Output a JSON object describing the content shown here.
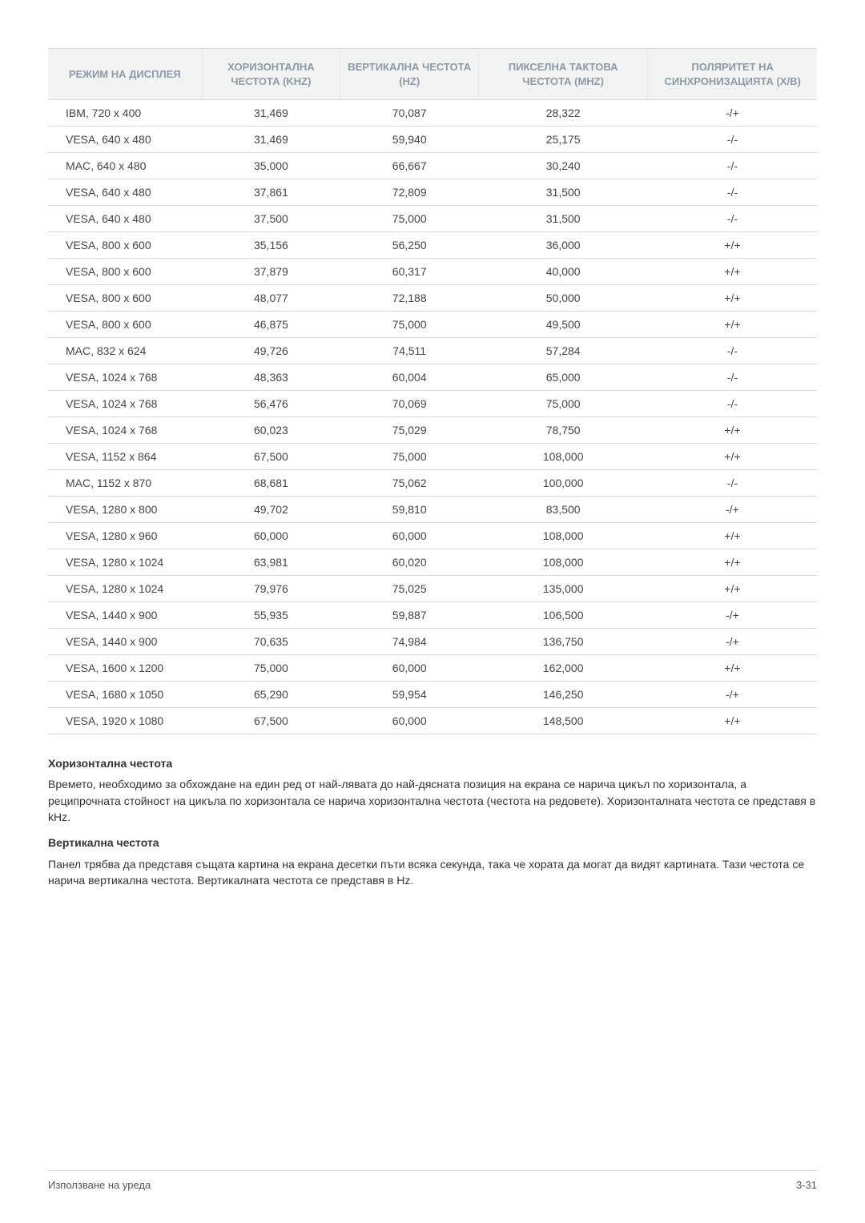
{
  "table": {
    "columns": [
      "РЕЖИМ НА ДИСПЛЕЯ",
      "ХОРИЗОНТАЛНА ЧЕСТОТА (KHZ)",
      "ВЕРТИКАЛНА ЧЕСТОТА (HZ)",
      "ПИКСЕЛНА ТАКТОВА ЧЕСТОТА (MHZ)",
      "ПОЛЯРИТЕТ НА СИНХРОНИЗАЦИЯТА (Х/В)"
    ],
    "col_widths_pct": [
      20,
      18,
      18,
      22,
      22
    ],
    "header_bg": "#f1f2f2",
    "header_fg": "#8d9aa6",
    "border_color": "#d7d9db",
    "rows": [
      [
        "IBM, 720 x 400",
        "31,469",
        "70,087",
        "28,322",
        "-/+"
      ],
      [
        "VESA, 640 x 480",
        "31,469",
        "59,940",
        "25,175",
        "-/-"
      ],
      [
        "MAC, 640 x 480",
        "35,000",
        "66,667",
        "30,240",
        "-/-"
      ],
      [
        "VESA, 640 x 480",
        "37,861",
        "72,809",
        "31,500",
        "-/-"
      ],
      [
        "VESA, 640 x 480",
        "37,500",
        "75,000",
        "31,500",
        "-/-"
      ],
      [
        "VESA, 800 x 600",
        "35,156",
        "56,250",
        "36,000",
        "+/+"
      ],
      [
        "VESA, 800 x 600",
        "37,879",
        "60,317",
        "40,000",
        "+/+"
      ],
      [
        "VESA, 800 x 600",
        "48,077",
        "72,188",
        "50,000",
        "+/+"
      ],
      [
        "VESA, 800 x 600",
        "46,875",
        "75,000",
        "49,500",
        "+/+"
      ],
      [
        "MAC, 832 x 624",
        "49,726",
        "74,511",
        "57,284",
        "-/-"
      ],
      [
        "VESA, 1024 x 768",
        "48,363",
        "60,004",
        "65,000",
        "-/-"
      ],
      [
        "VESA, 1024 x 768",
        "56,476",
        "70,069",
        "75,000",
        "-/-"
      ],
      [
        "VESA, 1024 x 768",
        "60,023",
        "75,029",
        "78,750",
        "+/+"
      ],
      [
        "VESA, 1152 x 864",
        "67,500",
        "75,000",
        "108,000",
        "+/+"
      ],
      [
        "MAC, 1152 x 870",
        "68,681",
        "75,062",
        "100,000",
        "-/-"
      ],
      [
        "VESA, 1280 x 800",
        "49,702",
        "59,810",
        "83,500",
        "-/+"
      ],
      [
        "VESA, 1280 x 960",
        "60,000",
        "60,000",
        "108,000",
        "+/+"
      ],
      [
        "VESA, 1280 x 1024",
        "63,981",
        "60,020",
        "108,000",
        "+/+"
      ],
      [
        "VESA, 1280 x 1024",
        "79,976",
        "75,025",
        "135,000",
        "+/+"
      ],
      [
        "VESA, 1440 x 900",
        "55,935",
        "59,887",
        "106,500",
        "-/+"
      ],
      [
        "VESA, 1440 x 900",
        "70,635",
        "74,984",
        "136,750",
        "-/+"
      ],
      [
        "VESA, 1600 x 1200",
        "75,000",
        "60,000",
        "162,000",
        "+/+"
      ],
      [
        "VESA, 1680 x 1050",
        "65,290",
        "59,954",
        "146,250",
        "-/+"
      ],
      [
        "VESA, 1920 x 1080",
        "67,500",
        "60,000",
        "148,500",
        "+/+"
      ]
    ]
  },
  "notes": {
    "h1": "Хоризонтална честота",
    "p1": "Времето, необходимо за обхождане на един ред от най-лявата до най-дясната позиция на екрана се нарича цикъл по хоризонтала, а реципрочната стойност на цикъла по хоризонтала се нарича хоризонтална честота (честота на редовете). Хоризонталната честота се представя в kHz.",
    "h2": "Вертикална честота",
    "p2": "Панел трябва да представя същата картина на екрана десетки пъти всяка секунда, така че хората да могат да видят картината. Тази честота се нарича вертикална честота. Вертикалната честота се представя в Hz."
  },
  "footer": {
    "left": "Използване на уреда",
    "right": "3-31"
  }
}
